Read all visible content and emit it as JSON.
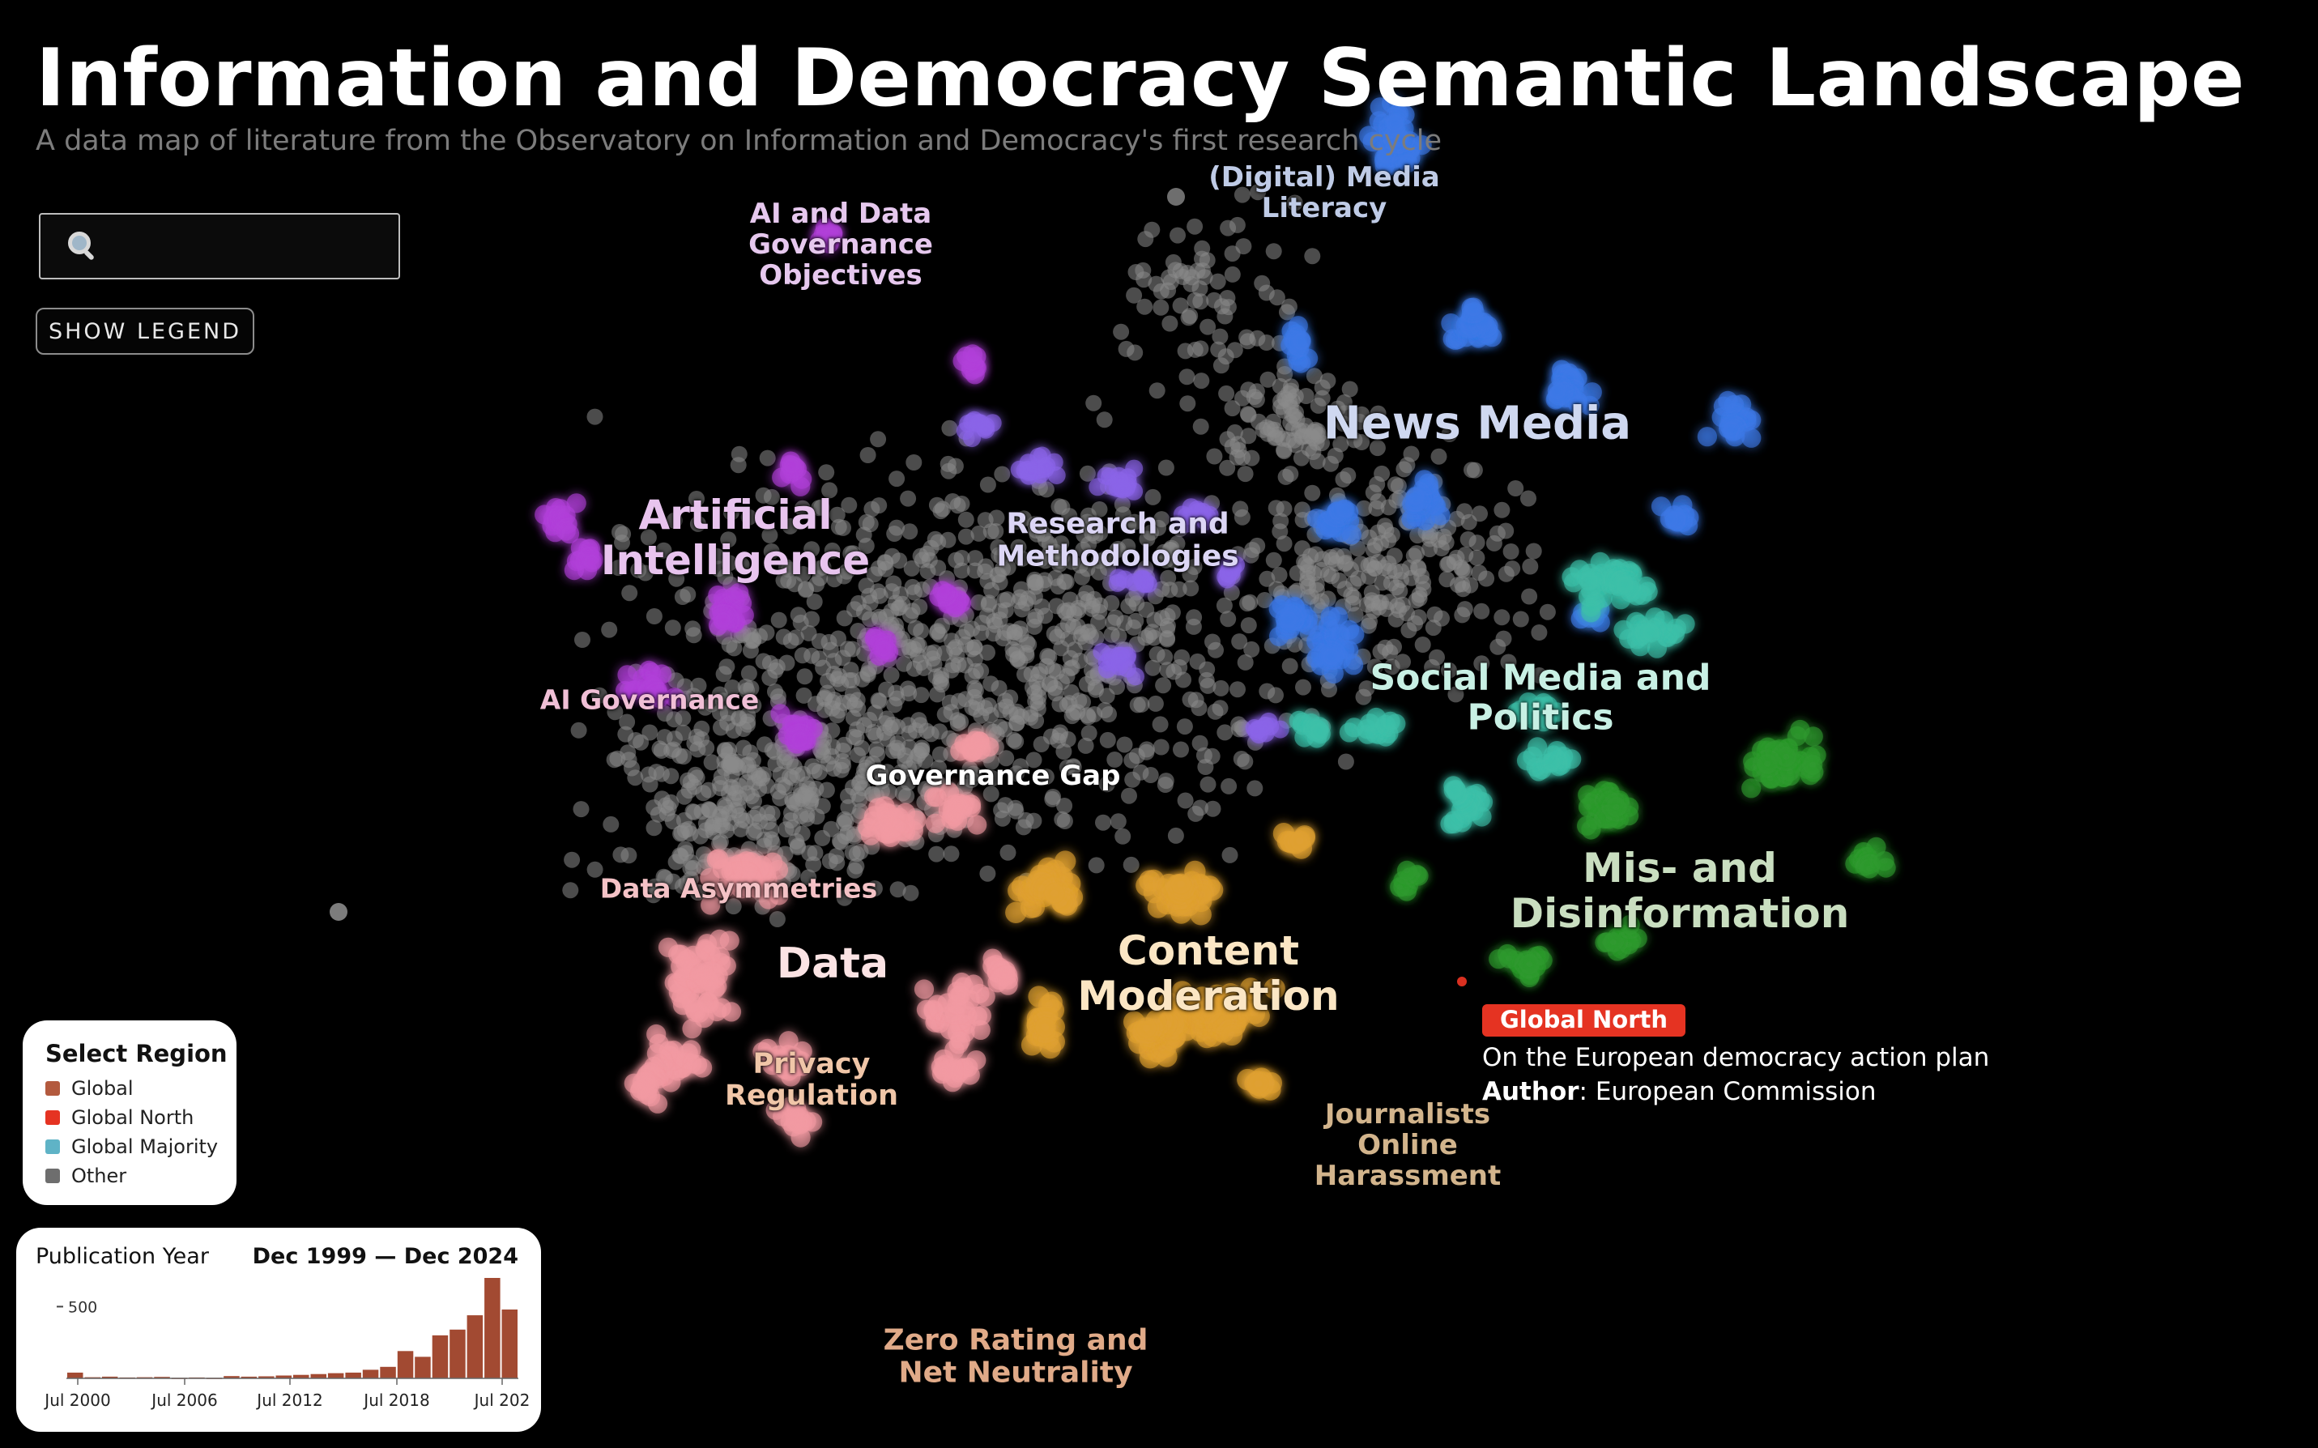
{
  "header": {
    "title": "Information and Democracy Semantic Landscape",
    "subtitle": "A data map of literature from the Observatory on Information and Democracy's first research cycle"
  },
  "search": {
    "value": "",
    "placeholder": "",
    "icon": "search-icon"
  },
  "legend_button": {
    "label": "SHOW LEGEND"
  },
  "clusters": [
    {
      "id": "ai-data-governance-objectives",
      "lines": [
        "AI and Data",
        "Governance",
        "Objectives"
      ],
      "color": "#e6c8ee",
      "size": 34
    },
    {
      "id": "digital-media-literacy",
      "lines": [
        "(Digital) Media",
        "Literacy"
      ],
      "color": "#bfcbe6",
      "size": 34
    },
    {
      "id": "news-media",
      "lines": [
        "News Media"
      ],
      "color": "#cfd8f0",
      "size": 56
    },
    {
      "id": "artificial-intelligence",
      "lines": [
        "Artificial",
        "Intelligence"
      ],
      "color": "#e8c4ee",
      "size": 50
    },
    {
      "id": "research-methodologies",
      "lines": [
        "Research and",
        "Methodologies"
      ],
      "color": "#dcd6f5",
      "size": 36
    },
    {
      "id": "ai-governance",
      "lines": [
        "AI Governance"
      ],
      "color": "#f0bfd6",
      "size": 33
    },
    {
      "id": "social-media-politics",
      "lines": [
        "Social Media and",
        "Politics"
      ],
      "color": "#c8f0e4",
      "size": 44
    },
    {
      "id": "governance-gap",
      "lines": [
        "Governance Gap"
      ],
      "color": "#ffffff",
      "size": 34
    },
    {
      "id": "mis-disinformation",
      "lines": [
        "Mis- and",
        "Disinformation"
      ],
      "color": "#c9dec0",
      "size": 50
    },
    {
      "id": "data-asymmetries",
      "lines": [
        "Data Asymmetries"
      ],
      "color": "#f4c2c6",
      "size": 33
    },
    {
      "id": "data",
      "lines": [
        "Data"
      ],
      "color": "#fbe3e4",
      "size": 52
    },
    {
      "id": "content-moderation",
      "lines": [
        "Content",
        "Moderation"
      ],
      "color": "#fbe6c4",
      "size": 50
    },
    {
      "id": "privacy-regulation",
      "lines": [
        "Privacy",
        "Regulation"
      ],
      "color": "#f0c6a8",
      "size": 35
    },
    {
      "id": "journalists-online-harassment",
      "lines": [
        "Journalists",
        "Online",
        "Harassment"
      ],
      "color": "#d2b48c",
      "size": 34
    },
    {
      "id": "zero-rating-net-neutrality",
      "lines": [
        "Zero Rating and",
        "Net Neutrality"
      ],
      "color": "#e0aa88",
      "size": 36
    }
  ],
  "region_panel": {
    "title": "Select Region",
    "items": [
      {
        "label": "Global",
        "color": "#b35a3e"
      },
      {
        "label": "Global North",
        "color": "#e53322"
      },
      {
        "label": "Global Majority",
        "color": "#5fb3c6"
      },
      {
        "label": "Other",
        "color": "#6e6e6e"
      }
    ]
  },
  "year_panel": {
    "label": "Publication Year",
    "range": "Dec 1999 — Dec 2024",
    "ytick": "500",
    "xticks": [
      "Jul 2000",
      "Jul 2006",
      "Jul 2012",
      "Jul 2018",
      "Jul 202"
    ],
    "bar_color": "#a24a32",
    "bars": [
      40,
      8,
      12,
      6,
      8,
      10,
      4,
      6,
      4,
      16,
      12,
      14,
      20,
      24,
      30,
      36,
      40,
      60,
      80,
      190,
      150,
      300,
      340,
      440,
      700,
      480
    ]
  },
  "tooltip": {
    "badge": "Global North",
    "badge_color": "#e53322",
    "title": "On the European democracy action plan",
    "author_label": "Author",
    "author_sep": ": ",
    "author_value": "European Commission"
  },
  "colors": {
    "background": "#000000",
    "point_grey": "#8a8a8a",
    "purple": "#b040d8",
    "violet": "#8a64e8",
    "blue": "#3c78e6",
    "teal": "#3cc0a8",
    "green": "#2e9a2e",
    "pink": "#f29aa2",
    "orange": "#e0a030"
  }
}
